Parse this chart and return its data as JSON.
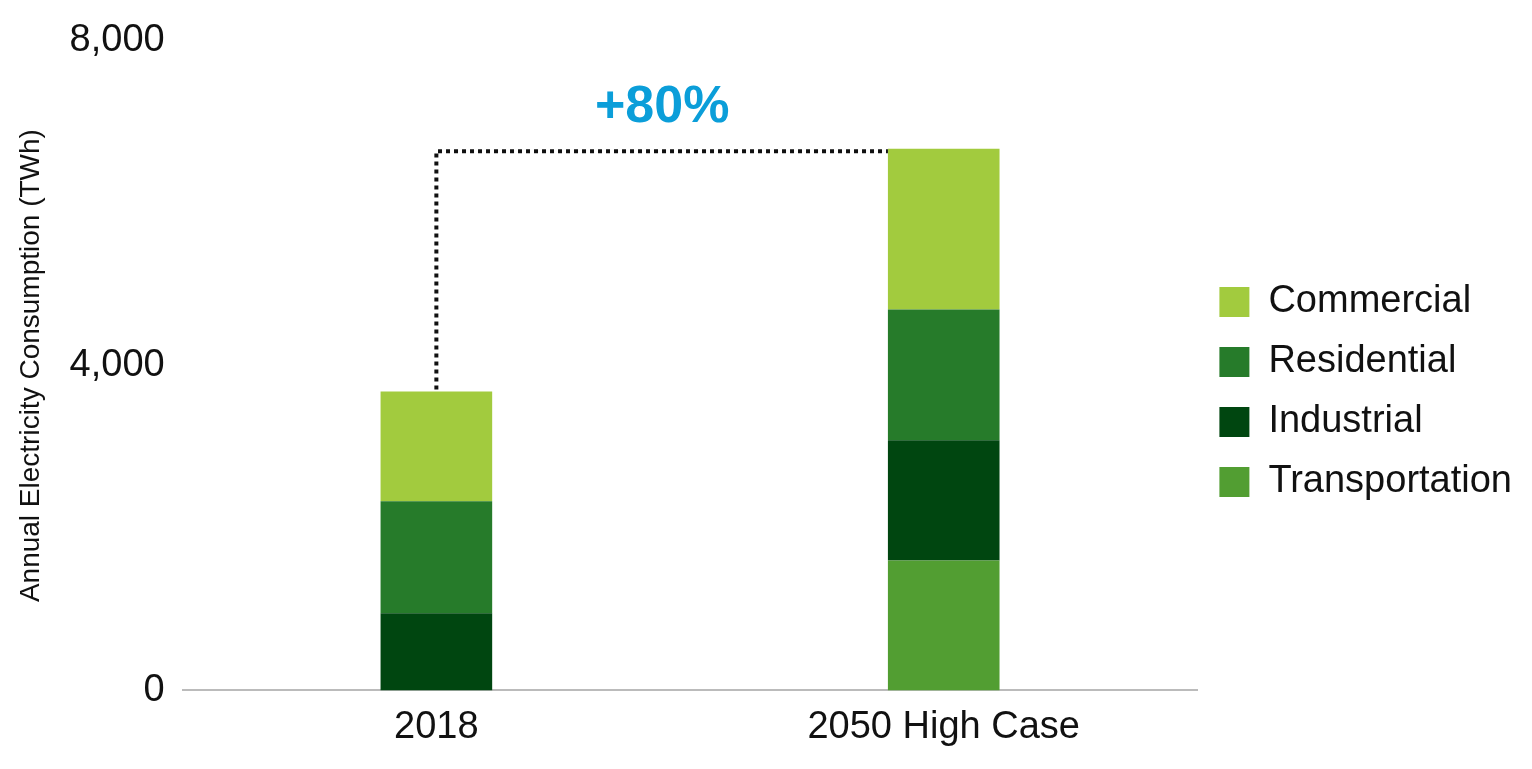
{
  "chart_data": {
    "type": "bar",
    "stacked": true,
    "ylabel": "Annual Electricity Consumption (TWh)",
    "categories": [
      "2018",
      "2050 High Case"
    ],
    "series": [
      {
        "name": "Transportation",
        "color": "#529e32",
        "values": [
          0,
          1600
        ]
      },
      {
        "name": "Industrial",
        "color": "#004610",
        "values": [
          950,
          1480
        ]
      },
      {
        "name": "Residential",
        "color": "#267b2a",
        "values": [
          1380,
          1610
        ]
      },
      {
        "name": "Commercial",
        "color": "#a2cb3e",
        "values": [
          1350,
          1980
        ]
      }
    ],
    "ylim": [
      0,
      8000
    ],
    "yticks": [
      0,
      {
        "value": 4000,
        "label": "4,000"
      },
      {
        "value": 8000,
        "label": "8,000"
      }
    ],
    "grid": false,
    "legend": "right",
    "ref_lines": [
      {
        "axis": "y",
        "value": 6640,
        "line_style": "dotted",
        "color": "#111111"
      }
    ],
    "annotations": [
      "+80%"
    ]
  }
}
